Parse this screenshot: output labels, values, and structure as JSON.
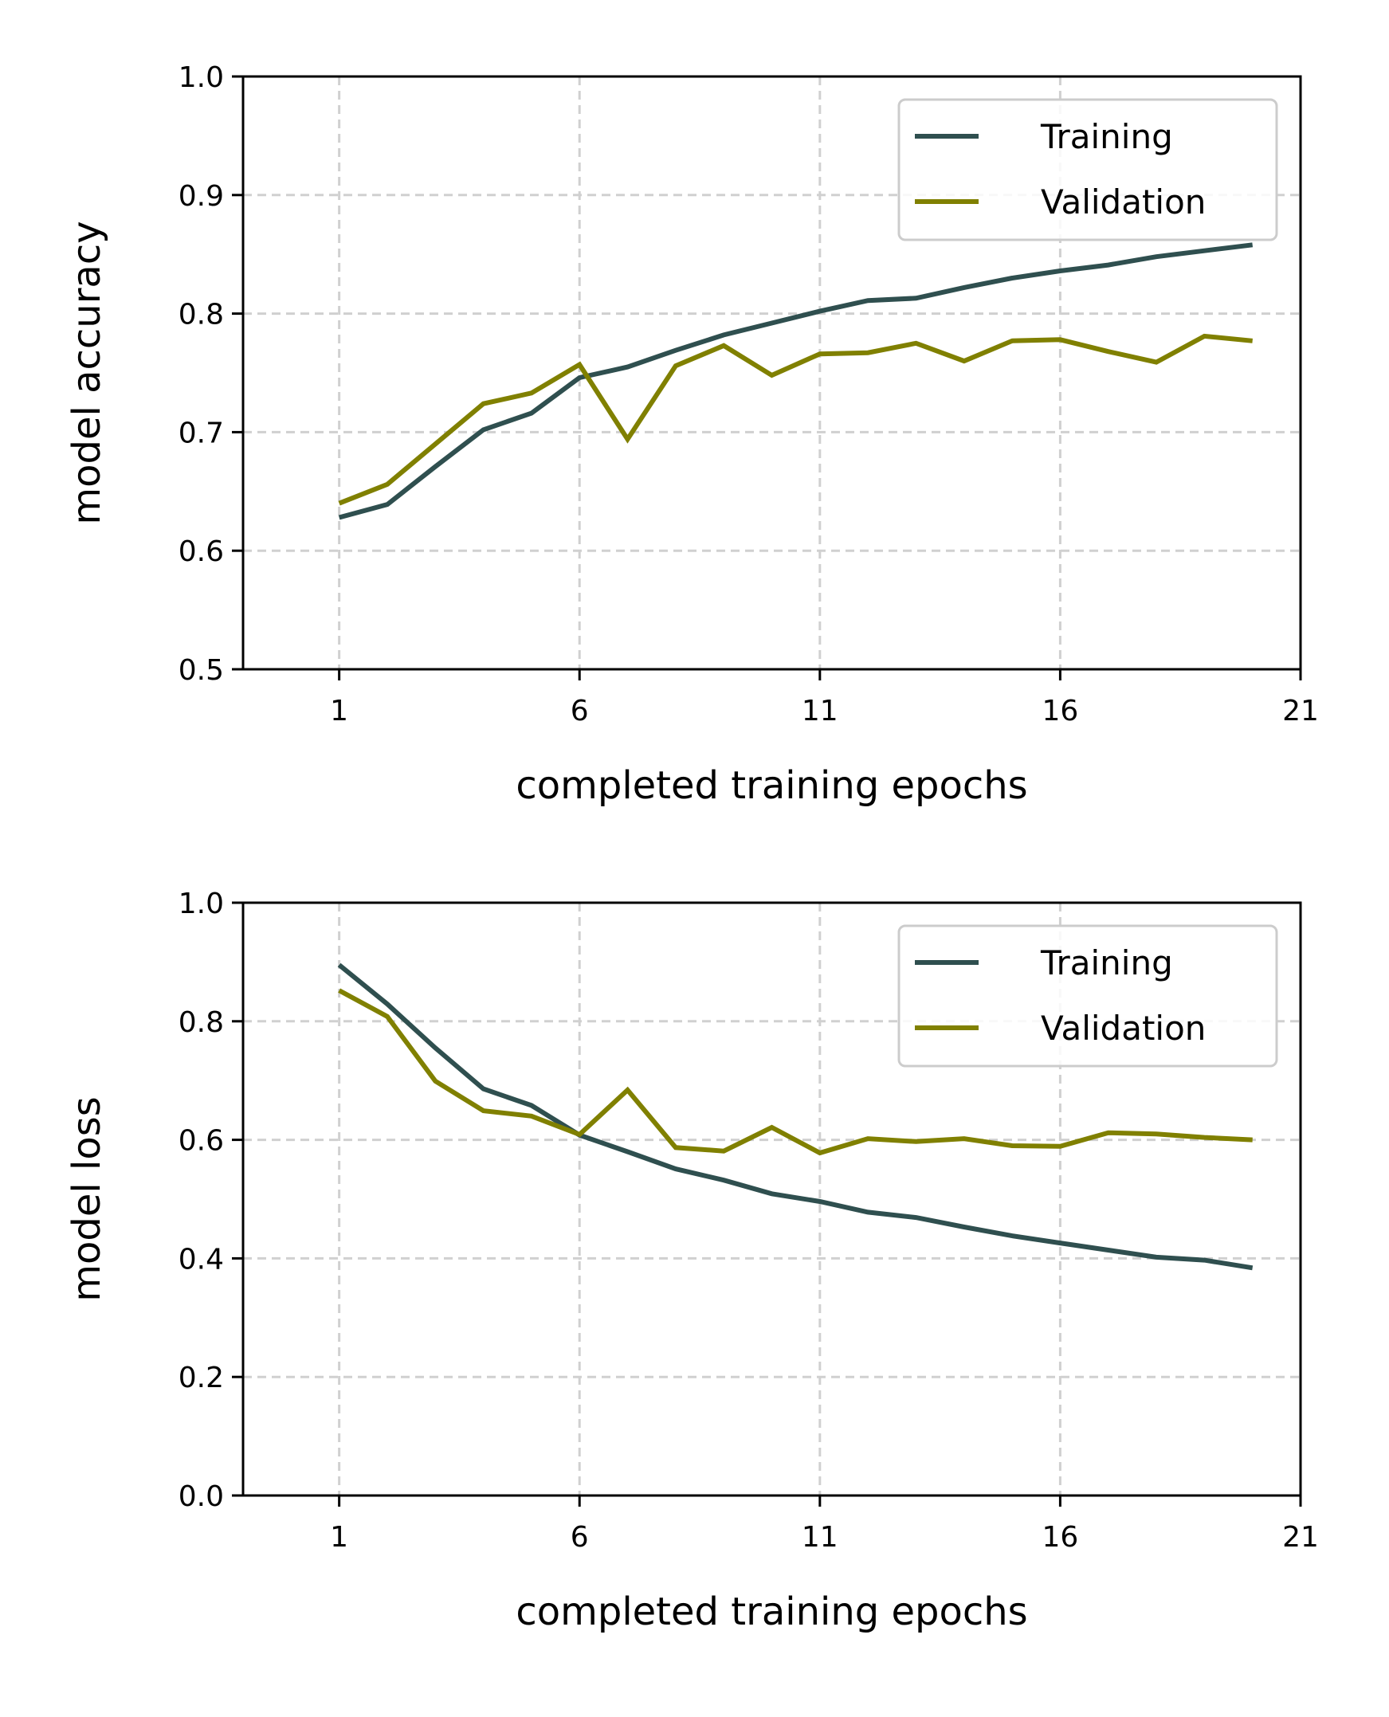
{
  "colors": {
    "training": "#2f4f4f",
    "validation": "#808000",
    "grid": "#d0d0d0",
    "legend_border": "#cccccc"
  },
  "chart_data": [
    {
      "type": "line",
      "title": "",
      "xlabel": "completed training epochs",
      "ylabel": "model accuracy",
      "xlim": [
        -1,
        21
      ],
      "ylim": [
        0.5,
        1.0
      ],
      "xticks": [
        1,
        6,
        11,
        16,
        21
      ],
      "xtick_labels": [
        "1",
        "6",
        "11",
        "16",
        "21"
      ],
      "yticks": [
        0.5,
        0.6,
        0.7,
        0.8,
        0.9,
        1.0
      ],
      "ytick_labels": [
        "0.5",
        "0.6",
        "0.7",
        "0.8",
        "0.9",
        "1.0"
      ],
      "grid": true,
      "legend": "top-right",
      "x": [
        1,
        2,
        3,
        4,
        5,
        6,
        7,
        8,
        9,
        10,
        11,
        12,
        13,
        14,
        15,
        16,
        17,
        18,
        19,
        20
      ],
      "series": [
        {
          "name": "Training",
          "color": "#2f4f4f",
          "values": [
            0.628,
            0.639,
            0.671,
            0.702,
            0.716,
            0.746,
            0.755,
            0.769,
            0.782,
            0.792,
            0.802,
            0.811,
            0.813,
            0.822,
            0.83,
            0.836,
            0.841,
            0.848,
            0.853,
            0.858
          ]
        },
        {
          "name": "Validation",
          "color": "#808000",
          "values": [
            0.64,
            0.656,
            0.69,
            0.724,
            0.733,
            0.757,
            0.694,
            0.756,
            0.773,
            0.748,
            0.766,
            0.767,
            0.775,
            0.76,
            0.777,
            0.778,
            0.768,
            0.759,
            0.781,
            0.777
          ]
        }
      ]
    },
    {
      "type": "line",
      "title": "",
      "xlabel": "completed training epochs",
      "ylabel": "model loss",
      "xlim": [
        -1,
        21
      ],
      "ylim": [
        0.0,
        1.0
      ],
      "xticks": [
        1,
        6,
        11,
        16,
        21
      ],
      "xtick_labels": [
        "1",
        "6",
        "11",
        "16",
        "21"
      ],
      "yticks": [
        0.0,
        0.2,
        0.4,
        0.6,
        0.8,
        1.0
      ],
      "ytick_labels": [
        "0.0",
        "0.2",
        "0.4",
        "0.6",
        "0.8",
        "1.0"
      ],
      "grid": true,
      "legend": "top-right",
      "x": [
        1,
        2,
        3,
        4,
        5,
        6,
        7,
        8,
        9,
        10,
        11,
        12,
        13,
        14,
        15,
        16,
        17,
        18,
        19,
        20
      ],
      "series": [
        {
          "name": "Training",
          "color": "#2f4f4f",
          "values": [
            0.895,
            0.829,
            0.755,
            0.686,
            0.658,
            0.608,
            0.58,
            0.551,
            0.532,
            0.509,
            0.496,
            0.478,
            0.469,
            0.453,
            0.438,
            0.426,
            0.414,
            0.402,
            0.397,
            0.384
          ]
        },
        {
          "name": "Validation",
          "color": "#808000",
          "values": [
            0.852,
            0.808,
            0.699,
            0.649,
            0.64,
            0.609,
            0.684,
            0.587,
            0.581,
            0.621,
            0.578,
            0.602,
            0.597,
            0.602,
            0.59,
            0.589,
            0.612,
            0.61,
            0.604,
            0.6
          ]
        }
      ]
    }
  ]
}
